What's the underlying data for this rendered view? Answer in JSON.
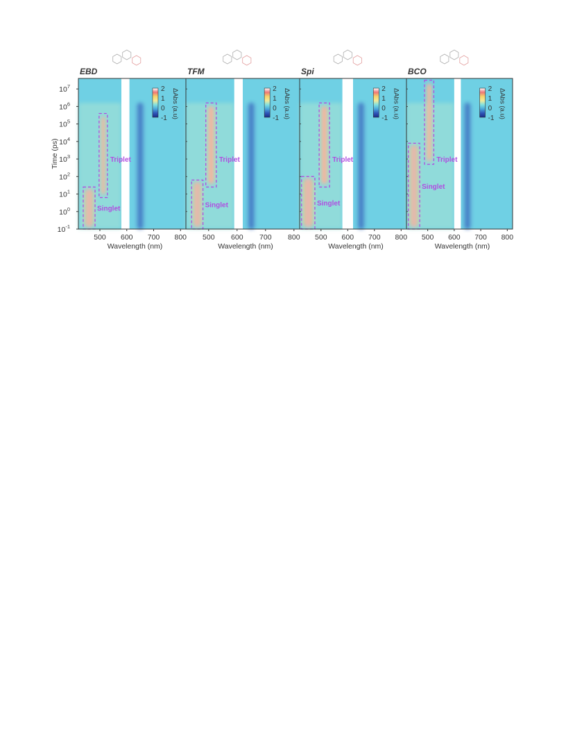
{
  "figure": {
    "ylabel": "Time (ps)",
    "xlabel": "Wavelength (nm)",
    "y_ticks": [
      "10-1",
      "100",
      "101",
      "102",
      "103",
      "104",
      "105",
      "106",
      "107"
    ],
    "x_ticks": [
      "500",
      "600",
      "700",
      "800"
    ],
    "colorbar": {
      "label": "ΔAbs (a.u)",
      "ticks": [
        "2",
        "1",
        "0",
        "-1"
      ],
      "colors": [
        "#ffffff",
        "#ee7777",
        "#f6d46a",
        "#f2ea9a",
        "#7ee0e2",
        "#4aa8dc",
        "#2f55b8",
        "#1a2b88"
      ]
    }
  },
  "chart_data": [
    {
      "type": "heatmap",
      "title": "EBD",
      "xlabel": "Wavelength (nm)",
      "ylabel": "Time (ps)",
      "xlim": [
        420,
        820
      ],
      "ylim_log10": [
        -1,
        7.6
      ],
      "y_scale": "log",
      "gap_nm": [
        580,
        610
      ],
      "clim": [
        -1,
        2
      ],
      "annotations": [
        {
          "label": "Singlet",
          "box_nm": [
            438,
            482
          ],
          "box_log_time": [
            -1,
            1.4
          ]
        },
        {
          "label": "Triplet",
          "box_nm": [
            497,
            528
          ],
          "box_log_time": [
            0.8,
            5.6
          ]
        }
      ]
    },
    {
      "type": "heatmap",
      "title": "TFM",
      "xlabel": "Wavelength (nm)",
      "ylabel": "",
      "xlim": [
        420,
        820
      ],
      "ylim_log10": [
        -1,
        7.6
      ],
      "y_scale": "log",
      "gap_nm": [
        590,
        620
      ],
      "clim": [
        -1,
        2
      ],
      "annotations": [
        {
          "label": "Singlet",
          "box_nm": [
            440,
            480
          ],
          "box_log_time": [
            -1,
            1.8
          ]
        },
        {
          "label": "Triplet",
          "box_nm": [
            490,
            527
          ],
          "box_log_time": [
            1.4,
            6.2
          ]
        }
      ]
    },
    {
      "type": "heatmap",
      "title": "Spi",
      "xlabel": "Wavelength (nm)",
      "ylabel": "",
      "xlim": [
        420,
        820
      ],
      "ylim_log10": [
        -1,
        7.6
      ],
      "y_scale": "log",
      "gap_nm": [
        580,
        620
      ],
      "clim": [
        -1,
        2
      ],
      "annotations": [
        {
          "label": "Singlet",
          "box_nm": [
            427,
            477
          ],
          "box_log_time": [
            -1,
            2.0
          ]
        },
        {
          "label": "Triplet",
          "box_nm": [
            493,
            532
          ],
          "box_log_time": [
            1.4,
            6.2
          ]
        }
      ]
    },
    {
      "type": "heatmap",
      "title": "BCO",
      "xlabel": "Wavelength (nm)",
      "ylabel": "",
      "xlim": [
        420,
        820
      ],
      "ylim_log10": [
        -1,
        7.6
      ],
      "y_scale": "log",
      "gap_nm": [
        600,
        625
      ],
      "clim": [
        -1,
        2
      ],
      "annotations": [
        {
          "label": "Singlet",
          "box_nm": [
            427,
            470
          ],
          "box_log_time": [
            -1,
            3.9
          ]
        },
        {
          "label": "Triplet",
          "box_nm": [
            488,
            523
          ],
          "box_log_time": [
            2.7,
            7.5
          ]
        }
      ]
    }
  ]
}
